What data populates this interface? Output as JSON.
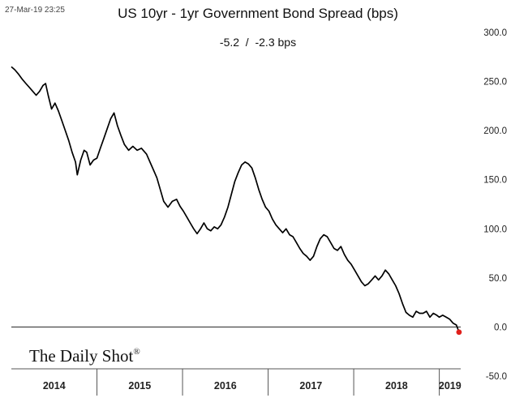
{
  "timestamp": "27-Mar-19 23:25",
  "brand": "The Daily Shot",
  "brand_mark": "®",
  "chart_data": {
    "type": "line",
    "title": "US 10yr - 1yr Government Bond Spread (bps)",
    "subtitle": "-5.2  /  -2.3 bps",
    "xlabel": "",
    "ylabel": "",
    "ylim": [
      -50,
      300
    ],
    "yticks": [
      -50,
      0,
      50,
      100,
      150,
      200,
      250,
      300
    ],
    "ytick_labels": [
      "-50.0",
      "0.0",
      "50.0",
      "100.0",
      "150.0",
      "200.0",
      "250.0",
      "300.0"
    ],
    "y_axis_position": "right",
    "grid": false,
    "legend": "none",
    "xlim": [
      2014.0,
      2019.25
    ],
    "x_categories": [
      "2014",
      "2015",
      "2016",
      "2017",
      "2018",
      "2019"
    ],
    "x_category_spans": [
      [
        2014.0,
        2015.0
      ],
      [
        2015.0,
        2016.0
      ],
      [
        2016.0,
        2017.0
      ],
      [
        2017.0,
        2018.0
      ],
      [
        2018.0,
        2019.0
      ],
      [
        2019.0,
        2019.25
      ]
    ],
    "series": [
      {
        "name": "",
        "color": "#000000",
        "points": [
          [
            2014.0,
            265
          ],
          [
            2014.04,
            262
          ],
          [
            2014.08,
            258
          ],
          [
            2014.13,
            252
          ],
          [
            2014.17,
            248
          ],
          [
            2014.21,
            244
          ],
          [
            2014.25,
            240
          ],
          [
            2014.29,
            236
          ],
          [
            2014.33,
            240
          ],
          [
            2014.37,
            246
          ],
          [
            2014.4,
            248
          ],
          [
            2014.43,
            236
          ],
          [
            2014.47,
            222
          ],
          [
            2014.51,
            228
          ],
          [
            2014.55,
            220
          ],
          [
            2014.59,
            210
          ],
          [
            2014.63,
            200
          ],
          [
            2014.67,
            190
          ],
          [
            2014.71,
            178
          ],
          [
            2014.75,
            168
          ],
          [
            2014.77,
            155
          ],
          [
            2014.81,
            170
          ],
          [
            2014.85,
            180
          ],
          [
            2014.88,
            178
          ],
          [
            2014.92,
            165
          ],
          [
            2014.96,
            170
          ],
          [
            2015.0,
            172
          ],
          [
            2015.04,
            182
          ],
          [
            2015.08,
            192
          ],
          [
            2015.12,
            202
          ],
          [
            2015.16,
            212
          ],
          [
            2015.2,
            218
          ],
          [
            2015.24,
            205
          ],
          [
            2015.28,
            195
          ],
          [
            2015.32,
            186
          ],
          [
            2015.37,
            180
          ],
          [
            2015.42,
            184
          ],
          [
            2015.47,
            180
          ],
          [
            2015.52,
            182
          ],
          [
            2015.58,
            176
          ],
          [
            2015.62,
            168
          ],
          [
            2015.66,
            160
          ],
          [
            2015.7,
            152
          ],
          [
            2015.74,
            140
          ],
          [
            2015.78,
            128
          ],
          [
            2015.83,
            122
          ],
          [
            2015.88,
            128
          ],
          [
            2015.93,
            130
          ],
          [
            2015.97,
            123
          ],
          [
            2016.01,
            118
          ],
          [
            2016.05,
            112
          ],
          [
            2016.09,
            106
          ],
          [
            2016.13,
            100
          ],
          [
            2016.17,
            95
          ],
          [
            2016.21,
            100
          ],
          [
            2016.25,
            106
          ],
          [
            2016.29,
            100
          ],
          [
            2016.33,
            98
          ],
          [
            2016.37,
            102
          ],
          [
            2016.41,
            100
          ],
          [
            2016.45,
            104
          ],
          [
            2016.49,
            112
          ],
          [
            2016.53,
            122
          ],
          [
            2016.57,
            135
          ],
          [
            2016.61,
            148
          ],
          [
            2016.65,
            157
          ],
          [
            2016.69,
            165
          ],
          [
            2016.73,
            168
          ],
          [
            2016.77,
            166
          ],
          [
            2016.81,
            162
          ],
          [
            2016.85,
            152
          ],
          [
            2016.89,
            140
          ],
          [
            2016.93,
            130
          ],
          [
            2016.97,
            122
          ],
          [
            2017.01,
            118
          ],
          [
            2017.05,
            110
          ],
          [
            2017.09,
            104
          ],
          [
            2017.13,
            100
          ],
          [
            2017.17,
            96
          ],
          [
            2017.21,
            100
          ],
          [
            2017.25,
            94
          ],
          [
            2017.29,
            92
          ],
          [
            2017.33,
            86
          ],
          [
            2017.37,
            80
          ],
          [
            2017.41,
            75
          ],
          [
            2017.45,
            72
          ],
          [
            2017.49,
            68
          ],
          [
            2017.53,
            72
          ],
          [
            2017.57,
            82
          ],
          [
            2017.61,
            90
          ],
          [
            2017.65,
            94
          ],
          [
            2017.69,
            92
          ],
          [
            2017.73,
            86
          ],
          [
            2017.77,
            80
          ],
          [
            2017.81,
            78
          ],
          [
            2017.85,
            82
          ],
          [
            2017.89,
            74
          ],
          [
            2017.93,
            68
          ],
          [
            2017.97,
            64
          ],
          [
            2018.01,
            58
          ],
          [
            2018.05,
            52
          ],
          [
            2018.09,
            46
          ],
          [
            2018.13,
            42
          ],
          [
            2018.17,
            44
          ],
          [
            2018.21,
            48
          ],
          [
            2018.25,
            52
          ],
          [
            2018.29,
            48
          ],
          [
            2018.33,
            52
          ],
          [
            2018.37,
            58
          ],
          [
            2018.41,
            54
          ],
          [
            2018.45,
            48
          ],
          [
            2018.49,
            42
          ],
          [
            2018.53,
            34
          ],
          [
            2018.57,
            24
          ],
          [
            2018.61,
            15
          ],
          [
            2018.65,
            12
          ],
          [
            2018.69,
            10
          ],
          [
            2018.73,
            16
          ],
          [
            2018.77,
            14
          ],
          [
            2018.81,
            14
          ],
          [
            2018.85,
            16
          ],
          [
            2018.89,
            10
          ],
          [
            2018.93,
            14
          ],
          [
            2018.97,
            12
          ],
          [
            2019.0,
            10
          ],
          [
            2019.04,
            12
          ],
          [
            2019.08,
            10
          ],
          [
            2019.12,
            8
          ],
          [
            2019.16,
            4
          ],
          [
            2019.2,
            2
          ],
          [
            2019.23,
            -5.2
          ]
        ]
      }
    ],
    "last_point": {
      "x": 2019.23,
      "y": -5.2,
      "marker": "dot",
      "color": "#e0201b"
    }
  }
}
